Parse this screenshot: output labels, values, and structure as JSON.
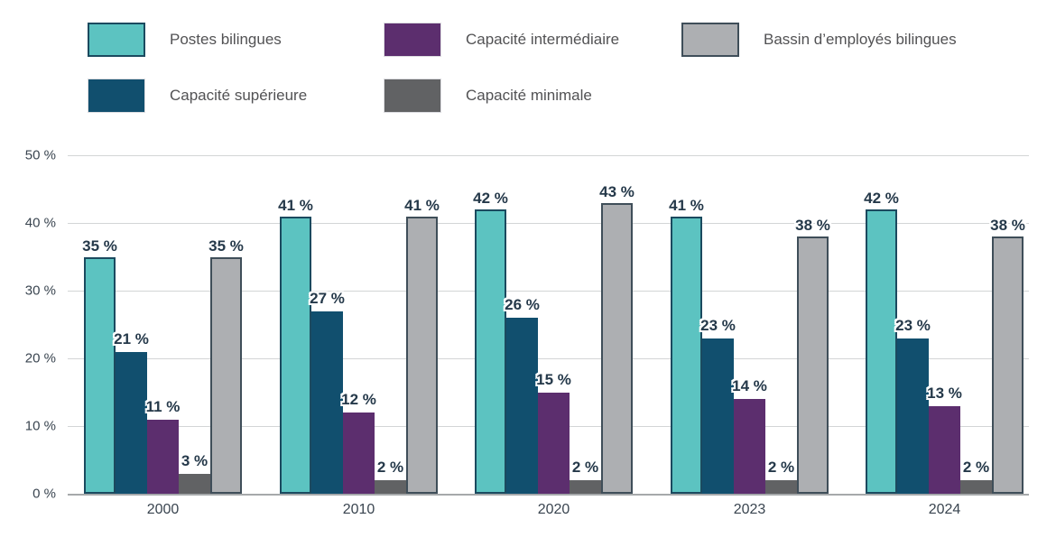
{
  "chart_data": {
    "type": "bar",
    "title": "",
    "categories": [
      "2000",
      "2010",
      "2020",
      "2023",
      "2024"
    ],
    "series": [
      {
        "name": "Postes bilingues",
        "color": "#5cc3c1",
        "border_color": "#1b4a5f",
        "values": [
          35,
          41,
          42,
          41,
          42
        ]
      },
      {
        "name": "Capacité supérieure",
        "color": "#114f6e",
        "border_color": null,
        "values": [
          21,
          27,
          26,
          23,
          23
        ]
      },
      {
        "name": "Capacité intermédiaire",
        "color": "#5c2e6e",
        "border_color": null,
        "values": [
          11,
          12,
          15,
          14,
          13
        ]
      },
      {
        "name": "Capacité minimale",
        "color": "#616264",
        "border_color": null,
        "values": [
          3,
          2,
          2,
          2,
          2
        ]
      },
      {
        "name": "Bassin d’employés bilingues",
        "color": "#adafb2",
        "border_color": "#3f4e59",
        "values": [
          35,
          41,
          43,
          38,
          38
        ]
      }
    ],
    "legend_order": [
      0,
      2,
      4,
      1,
      3
    ],
    "value_suffix": " %",
    "y_ticks": [
      "0 %",
      "10 %",
      "20 %",
      "30 %",
      "40 %",
      "50 %"
    ],
    "ylim": [
      0,
      50
    ],
    "grid": true,
    "legend_position": "top",
    "colors": {
      "value_label": "#25394a",
      "axis_text": "#3a4550",
      "gridline": "#d3d5d6",
      "baseline": "#a6a9ab",
      "legend_text": "#525254",
      "background": "#ffffff"
    }
  }
}
